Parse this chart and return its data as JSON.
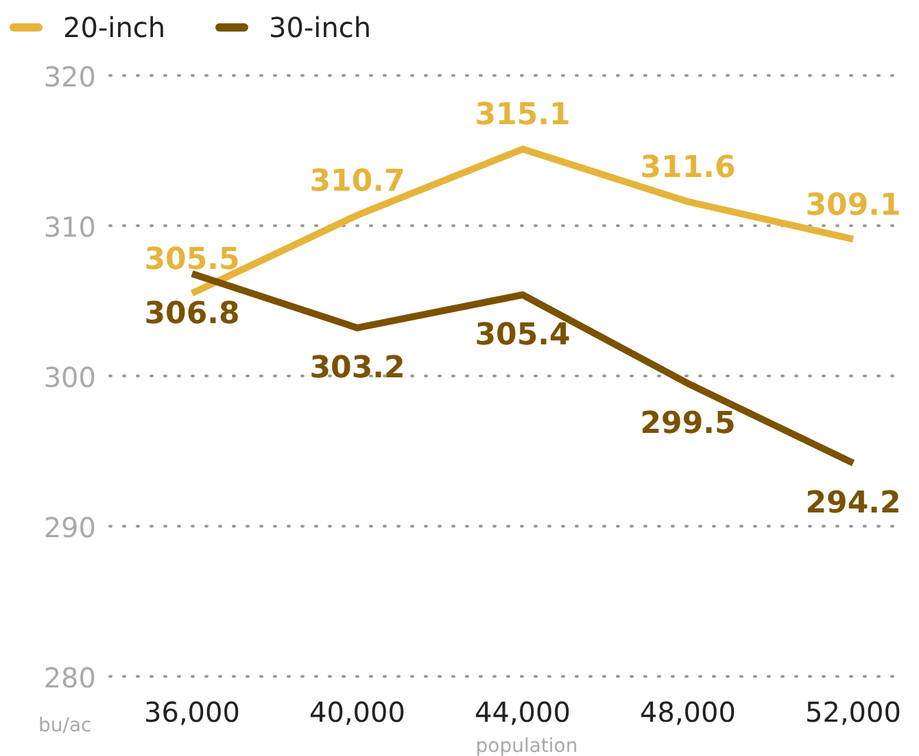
{
  "chart_data": {
    "type": "line",
    "xlabel": "population",
    "ylabel": "bu/ac",
    "categories": [
      "36,000",
      "40,000",
      "44,000",
      "48,000",
      "52,000"
    ],
    "series": [
      {
        "name": "20-inch",
        "color": "#e6b43c",
        "values": [
          305.5,
          310.7,
          315.1,
          311.6,
          309.1
        ]
      },
      {
        "name": "30-inch",
        "color": "#7a5200",
        "values": [
          306.8,
          303.2,
          305.4,
          299.5,
          294.2
        ]
      }
    ],
    "ylim": [
      280,
      320
    ],
    "yticks": [
      280,
      290,
      300,
      310,
      320
    ],
    "grid": "y",
    "legend": "top left",
    "data_labels": true,
    "marker": "none",
    "line_style": "solid"
  }
}
